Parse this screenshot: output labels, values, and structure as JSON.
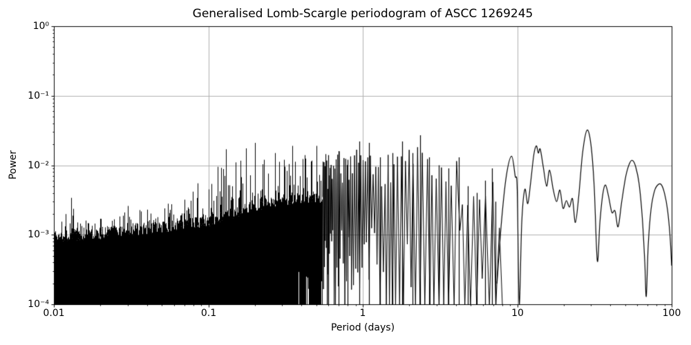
{
  "chart_data": {
    "type": "line",
    "title": "Generalised Lomb-Scargle periodogram of ASCC 1269245",
    "xlabel": "Period (days)",
    "ylabel": "Power",
    "xscale": "log",
    "yscale": "log",
    "xlim": [
      0.01,
      100
    ],
    "ylim": [
      0.0001,
      1.0
    ],
    "grid": true,
    "legend": "none",
    "line_color": "#000000",
    "grid_color": "#b0b0b0",
    "background_color": "#ffffff",
    "x_ticks": [
      0.01,
      0.1,
      1,
      10,
      100
    ],
    "x_tick_labels": [
      "0.01",
      "0.1",
      "1",
      "10",
      "100"
    ],
    "y_ticks": [
      1.0,
      0.1,
      0.01,
      0.001,
      0.0001
    ],
    "y_tick_labels": [
      "10⁰",
      "10⁻¹",
      "10⁻²",
      "10⁻³",
      "10⁻⁴"
    ],
    "series": {
      "name": "GLS power",
      "style": "dense noisy periodogram: unresolved solid band below ~0.5 d reaching down to 1e-4, resolved spikes 0.55-7.3 d with deep troughs, smooth resolved lobes above ~7.4 d",
      "dense_region_max_period": 0.55,
      "resolved_region_max_period": 7.3,
      "unresolved_fill_min_power": 0.0001,
      "noise_floor_top": [
        [
          0.01,
          0.00095
        ],
        [
          0.02,
          0.00105
        ],
        [
          0.05,
          0.0013
        ],
        [
          0.1,
          0.0016
        ],
        [
          0.2,
          0.0026
        ],
        [
          0.3,
          0.0032
        ],
        [
          0.45,
          0.0035
        ],
        [
          0.55,
          0.0035
        ]
      ],
      "peak_envelope": [
        [
          0.01,
          0.0016
        ],
        [
          0.013,
          0.0034
        ],
        [
          0.016,
          0.0016
        ],
        [
          0.02,
          0.0017
        ],
        [
          0.03,
          0.0026
        ],
        [
          0.04,
          0.0023
        ],
        [
          0.055,
          0.0028
        ],
        [
          0.07,
          0.0032
        ],
        [
          0.085,
          0.0055
        ],
        [
          0.1,
          0.0045
        ],
        [
          0.115,
          0.0095
        ],
        [
          0.13,
          0.017
        ],
        [
          0.15,
          0.011
        ],
        [
          0.175,
          0.0175
        ],
        [
          0.2,
          0.021
        ],
        [
          0.23,
          0.012
        ],
        [
          0.27,
          0.015
        ],
        [
          0.31,
          0.012
        ],
        [
          0.35,
          0.019
        ],
        [
          0.42,
          0.014
        ],
        [
          0.5,
          0.019
        ],
        [
          0.6,
          0.014
        ],
        [
          0.7,
          0.016
        ],
        [
          0.8,
          0.012
        ],
        [
          0.95,
          0.022
        ],
        [
          1.1,
          0.021
        ],
        [
          1.3,
          0.013
        ],
        [
          1.55,
          0.015
        ],
        [
          1.8,
          0.022
        ],
        [
          2.1,
          0.015
        ],
        [
          2.35,
          0.027
        ],
        [
          2.7,
          0.013
        ],
        [
          3.1,
          0.01
        ],
        [
          3.6,
          0.009
        ],
        [
          4.2,
          0.013
        ],
        [
          4.8,
          0.005
        ],
        [
          5.5,
          0.004
        ],
        [
          6.2,
          0.006
        ],
        [
          6.9,
          0.009
        ],
        [
          7.2,
          0.003
        ]
      ],
      "smooth_curve": [
        [
          7.4,
          0.0002
        ],
        [
          7.9,
          0.0015
        ],
        [
          8.5,
          0.007
        ],
        [
          9.2,
          0.0135
        ],
        [
          9.7,
          0.007
        ],
        [
          10.0,
          0.0045
        ],
        [
          10.3,
          0.0001
        ],
        [
          10.7,
          0.0015
        ],
        [
          11.2,
          0.0045
        ],
        [
          11.7,
          0.0028
        ],
        [
          12.2,
          0.0055
        ],
        [
          12.8,
          0.014
        ],
        [
          13.3,
          0.019
        ],
        [
          13.7,
          0.015
        ],
        [
          14.1,
          0.017
        ],
        [
          14.8,
          0.009
        ],
        [
          15.5,
          0.005
        ],
        [
          16.2,
          0.0085
        ],
        [
          17.1,
          0.0045
        ],
        [
          18.0,
          0.003
        ],
        [
          18.9,
          0.0044
        ],
        [
          19.8,
          0.0024
        ],
        [
          20.8,
          0.0031
        ],
        [
          21.8,
          0.0025
        ],
        [
          22.8,
          0.0033
        ],
        [
          23.8,
          0.0015
        ],
        [
          25.0,
          0.0035
        ],
        [
          26.5,
          0.015
        ],
        [
          28.3,
          0.032
        ],
        [
          30.0,
          0.02
        ],
        [
          31.5,
          0.005
        ],
        [
          33.0,
          0.00042
        ],
        [
          34.3,
          0.0015
        ],
        [
          35.8,
          0.0038
        ],
        [
          37.3,
          0.0052
        ],
        [
          39.0,
          0.0036
        ],
        [
          41.0,
          0.0021
        ],
        [
          43.0,
          0.0022
        ],
        [
          45.0,
          0.0013
        ],
        [
          47.5,
          0.003
        ],
        [
          50.5,
          0.007
        ],
        [
          53.5,
          0.0108
        ],
        [
          56.0,
          0.0117
        ],
        [
          58.5,
          0.0095
        ],
        [
          61.5,
          0.0055
        ],
        [
          64.5,
          0.0018
        ],
        [
          67.0,
          0.0004
        ],
        [
          68.5,
          0.00013
        ],
        [
          70.5,
          0.0007
        ],
        [
          73.5,
          0.0023
        ],
        [
          77.5,
          0.0043
        ],
        [
          82.0,
          0.0053
        ],
        [
          86.0,
          0.0052
        ],
        [
          90.0,
          0.0039
        ],
        [
          94.0,
          0.0023
        ],
        [
          97.5,
          0.001
        ],
        [
          100.0,
          0.00036
        ]
      ]
    }
  }
}
